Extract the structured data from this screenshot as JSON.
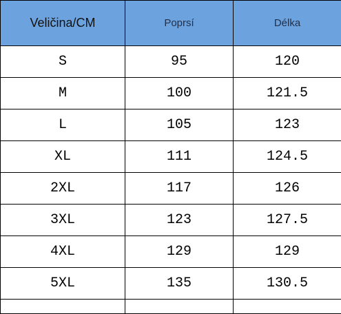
{
  "table": {
    "header": [
      "Veličina/CM",
      "Poprsí",
      "Délka"
    ],
    "rows": [
      [
        "S",
        95,
        120
      ],
      [
        "M",
        100,
        121.5
      ],
      [
        "L",
        105,
        123
      ],
      [
        "XL",
        111,
        124.5
      ],
      [
        "2XL",
        117,
        126
      ],
      [
        "3XL",
        123,
        127.5
      ],
      [
        "4XL",
        129,
        129
      ],
      [
        "5XL",
        135,
        130.5
      ]
    ]
  }
}
